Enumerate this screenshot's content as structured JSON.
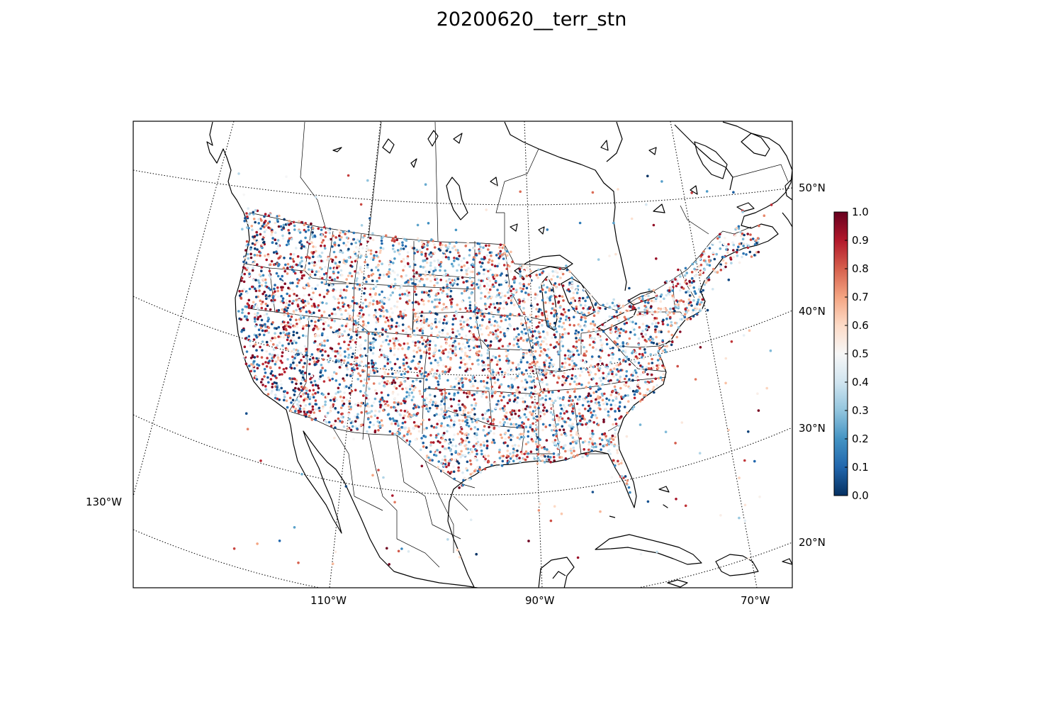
{
  "figure": {
    "title": "20200620__terr_stn"
  },
  "map": {
    "projection": "lambert-conformal",
    "extent": {
      "lon_min": -130,
      "lon_max": -65,
      "lat_min": 20,
      "lat_max": 52
    },
    "meridians": [
      -130,
      -110,
      -90,
      -70
    ],
    "parallels": [
      20,
      30,
      40,
      50
    ],
    "meridian_labels": [
      "130°W",
      "110°W",
      "90°W",
      "70°W"
    ],
    "parallel_labels": [
      "20°N",
      "30°N",
      "40°N",
      "50°N"
    ],
    "graticule": "dotted",
    "features": [
      "coastlines",
      "country-borders",
      "state-borders"
    ],
    "marker": "station-dot"
  },
  "colorbar": {
    "colormap": "RdBu_r",
    "min": 0.0,
    "max": 1.0,
    "tick_labels": [
      "0.0",
      "0.1",
      "0.2",
      "0.3",
      "0.4",
      "0.5",
      "0.6",
      "0.7",
      "0.8",
      "0.9",
      "1.0"
    ],
    "colors": [
      "#053061",
      "#2166ac",
      "#4393c3",
      "#92c5de",
      "#d1e5f0",
      "#f7f7f7",
      "#fddbc7",
      "#f4a582",
      "#d6604d",
      "#b2182b",
      "#67001f"
    ]
  }
}
